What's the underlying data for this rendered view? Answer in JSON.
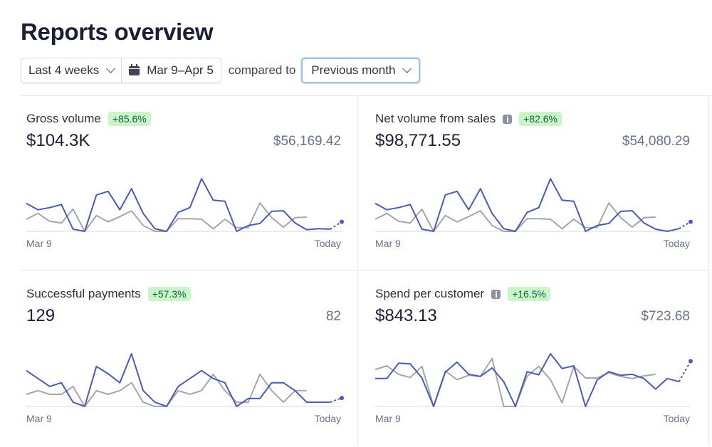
{
  "page": {
    "title": "Reports overview"
  },
  "filters": {
    "range_label": "Last 4 weeks",
    "date_range": "Mar 9–Apr 5",
    "compared_to_label": "compared to",
    "comparison": "Previous month"
  },
  "colors": {
    "current": "#4b5bb5",
    "previous": "#a3a6ab",
    "baseline": "#e3e5e8",
    "badge_bg": "#cbf4c9",
    "badge_text": "#0e6245"
  },
  "chart_data": [
    {
      "type": "line",
      "title": "Gross volume",
      "change": "+85.6%",
      "value": "$104.3K",
      "previous_value": "$56,169.42",
      "has_info": false,
      "x_start_label": "Mar 9",
      "x_end_label": "Today",
      "ylim": [
        0,
        100
      ],
      "series": [
        {
          "name": "Current period",
          "values": [
            53,
            41,
            45,
            51,
            4,
            0,
            69,
            76,
            41,
            81,
            34,
            5,
            0,
            36,
            45,
            100,
            59,
            57,
            0,
            11,
            15,
            38,
            39,
            16,
            3,
            5,
            4
          ],
          "projected_today": 18
        },
        {
          "name": "Previous period",
          "values": [
            23,
            34,
            19,
            16,
            42,
            0,
            30,
            18,
            28,
            39,
            11,
            0,
            0,
            24,
            24,
            23,
            5,
            23,
            7,
            7,
            54,
            26,
            8,
            26,
            27
          ]
        }
      ]
    },
    {
      "type": "line",
      "title": "Net volume from sales",
      "change": "+82.6%",
      "value": "$98,771.55",
      "previous_value": "$54,080.29",
      "has_info": true,
      "x_start_label": "Mar 9",
      "x_end_label": "Today",
      "ylim": [
        0,
        100
      ],
      "series": [
        {
          "name": "Current period",
          "values": [
            53,
            41,
            45,
            51,
            4,
            0,
            69,
            76,
            41,
            81,
            34,
            5,
            0,
            36,
            45,
            100,
            59,
            57,
            0,
            11,
            15,
            38,
            39,
            16,
            4,
            0,
            5
          ],
          "projected_today": 18
        },
        {
          "name": "Previous period",
          "values": [
            23,
            34,
            19,
            16,
            42,
            0,
            30,
            18,
            28,
            39,
            11,
            0,
            0,
            24,
            24,
            23,
            5,
            23,
            7,
            7,
            54,
            26,
            8,
            26,
            27
          ]
        }
      ]
    },
    {
      "type": "line",
      "title": "Successful payments",
      "change": "+57.3%",
      "value": "129",
      "previous_value": "82",
      "has_info": false,
      "x_start_label": "Mar 9",
      "x_end_label": "Today",
      "ylim": [
        0,
        100
      ],
      "series": [
        {
          "name": "Current period",
          "values": [
            68,
            53,
            38,
            45,
            8,
            0,
            76,
            62,
            45,
            100,
            30,
            8,
            0,
            38,
            53,
            68,
            53,
            45,
            0,
            15,
            15,
            45,
            45,
            30,
            8,
            8,
            8
          ],
          "projected_today": 16
        },
        {
          "name": "Previous period",
          "values": [
            23,
            30,
            23,
            23,
            38,
            0,
            30,
            23,
            30,
            45,
            8,
            0,
            0,
            30,
            23,
            30,
            61,
            30,
            8,
            8,
            61,
            30,
            8,
            30,
            30
          ]
        }
      ]
    },
    {
      "type": "line",
      "title": "Spend per customer",
      "change": "+16.5%",
      "value": "$843.13",
      "previous_value": "$723.68",
      "has_info": true,
      "x_start_label": "Mar 9",
      "x_end_label": "Today",
      "ylim": [
        0,
        100
      ],
      "series": [
        {
          "name": "Current period",
          "values": [
            53,
            53,
            82,
            81,
            54,
            0,
            65,
            84,
            61,
            57,
            73,
            47,
            0,
            66,
            60,
            100,
            72,
            77,
            0,
            50,
            66,
            59,
            61,
            53,
            33,
            53,
            47
          ],
          "projected_today": 86
        },
        {
          "name": "Previous period",
          "values": [
            70,
            77,
            61,
            55,
            76,
            0,
            67,
            51,
            59,
            57,
            91,
            0,
            0,
            57,
            76,
            51,
            7,
            76,
            54,
            54,
            64,
            57,
            53,
            58,
            61
          ]
        }
      ]
    }
  ]
}
